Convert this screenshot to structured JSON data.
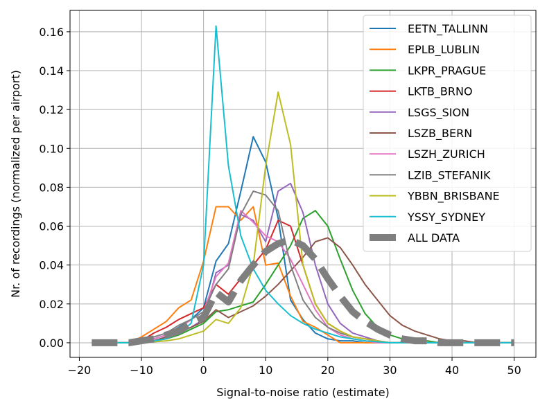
{
  "chart_data": {
    "type": "line",
    "title": "",
    "xlabel": "Signal-to-noise ratio (estimate)",
    "ylabel": "Nr. of recordings (normalized per airport)",
    "xlim": [
      -21.5,
      53.5
    ],
    "ylim": [
      -0.0075,
      0.171
    ],
    "xticks": [
      -20,
      -10,
      0,
      10,
      20,
      30,
      40,
      50
    ],
    "xtick_labels": [
      "−20",
      "−10",
      "0",
      "10",
      "20",
      "30",
      "40",
      "50"
    ],
    "yticks": [
      0.0,
      0.02,
      0.04,
      0.06,
      0.08,
      0.1,
      0.12,
      0.14,
      0.16
    ],
    "ytick_labels": [
      "0.00",
      "0.02",
      "0.04",
      "0.06",
      "0.08",
      "0.10",
      "0.12",
      "0.14",
      "0.16"
    ],
    "grid": true,
    "legend_position": "top-right",
    "series": [
      {
        "name": "EETN_TALLINN",
        "color": "#1f77b4",
        "x": [
          -18,
          -16,
          -14,
          -12,
          -10,
          -8,
          -6,
          -4,
          -2,
          0,
          2,
          4,
          6,
          8,
          10,
          12,
          14,
          16,
          18,
          20,
          22,
          24,
          26,
          28,
          30,
          32,
          34,
          36,
          38,
          40,
          42,
          44,
          46,
          48,
          50
        ],
        "y": [
          0,
          0,
          0,
          0,
          0,
          0.002,
          0.004,
          0.008,
          0.012,
          0.018,
          0.042,
          0.051,
          0.078,
          0.106,
          0.093,
          0.064,
          0.022,
          0.012,
          0.005,
          0.002,
          0.001,
          0.001,
          0,
          0,
          0,
          0,
          0,
          0,
          0,
          0,
          0,
          0,
          0,
          0,
          0
        ]
      },
      {
        "name": "EPLB_LUBLIN",
        "color": "#ff7f0e",
        "x": [
          -18,
          -16,
          -14,
          -12,
          -10,
          -8,
          -6,
          -4,
          -2,
          0,
          2,
          4,
          6,
          8,
          10,
          12,
          14,
          16,
          18,
          20,
          22,
          24,
          26,
          28,
          30,
          32,
          34,
          36,
          38,
          40,
          42,
          44,
          46,
          48,
          50
        ],
        "y": [
          0,
          0,
          0,
          0,
          0.003,
          0.007,
          0.011,
          0.018,
          0.022,
          0.042,
          0.07,
          0.07,
          0.063,
          0.07,
          0.04,
          0.041,
          0.024,
          0.011,
          0.008,
          0.004,
          0,
          0,
          0,
          0,
          0,
          0,
          0,
          0,
          0,
          0,
          0,
          0,
          0,
          0,
          0
        ]
      },
      {
        "name": "LKPR_PRAGUE",
        "color": "#2ca02c",
        "x": [
          -18,
          -16,
          -14,
          -12,
          -10,
          -8,
          -6,
          -4,
          -2,
          0,
          2,
          4,
          6,
          8,
          10,
          12,
          14,
          16,
          18,
          20,
          22,
          24,
          26,
          28,
          30,
          32,
          34,
          36,
          38,
          40,
          42,
          44,
          46,
          48,
          50
        ],
        "y": [
          0,
          0,
          0,
          0,
          0,
          0.001,
          0.002,
          0.004,
          0.007,
          0.01,
          0.016,
          0.017,
          0.019,
          0.021,
          0.03,
          0.04,
          0.05,
          0.064,
          0.068,
          0.06,
          0.043,
          0.027,
          0.015,
          0.008,
          0.004,
          0.002,
          0.001,
          0.001,
          0,
          0,
          0,
          0,
          0,
          0,
          0
        ]
      },
      {
        "name": "LKTB_BRNO",
        "color": "#d62728",
        "x": [
          -18,
          -16,
          -14,
          -12,
          -10,
          -8,
          -6,
          -4,
          -2,
          0,
          2,
          4,
          6,
          8,
          10,
          12,
          14,
          16,
          18,
          20,
          22,
          24,
          26,
          28,
          30,
          32,
          34,
          36,
          38,
          40,
          42,
          44,
          46,
          48,
          50
        ],
        "y": [
          0,
          0,
          0,
          0,
          0.001,
          0.005,
          0.008,
          0.012,
          0.015,
          0.018,
          0.03,
          0.025,
          0.033,
          0.04,
          0.048,
          0.063,
          0.06,
          0.04,
          0.02,
          0.01,
          0.006,
          0.003,
          0.002,
          0.001,
          0,
          0,
          0,
          0,
          0,
          0,
          0,
          0,
          0,
          0,
          0
        ]
      },
      {
        "name": "LSGS_SION",
        "color": "#9467bd",
        "x": [
          -18,
          -16,
          -14,
          -12,
          -10,
          -8,
          -6,
          -4,
          -2,
          0,
          2,
          4,
          6,
          8,
          10,
          12,
          14,
          16,
          18,
          20,
          22,
          24,
          26,
          28,
          30,
          32,
          34,
          36,
          38,
          40,
          42,
          44,
          46,
          48,
          50
        ],
        "y": [
          0,
          0,
          0,
          0,
          0,
          0.001,
          0.003,
          0.005,
          0.008,
          0.012,
          0.036,
          0.04,
          0.066,
          0.063,
          0.052,
          0.078,
          0.082,
          0.067,
          0.04,
          0.02,
          0.01,
          0.005,
          0.003,
          0.001,
          0,
          0,
          0,
          0,
          0,
          0,
          0,
          0,
          0,
          0,
          0
        ]
      },
      {
        "name": "LSZB_BERN",
        "color": "#8c564b",
        "x": [
          -18,
          -16,
          -14,
          -12,
          -10,
          -8,
          -6,
          -4,
          -2,
          0,
          2,
          4,
          6,
          8,
          10,
          12,
          14,
          16,
          18,
          20,
          22,
          24,
          26,
          28,
          30,
          32,
          34,
          36,
          38,
          40,
          42,
          44,
          46,
          48,
          50
        ],
        "y": [
          0,
          0,
          0,
          0,
          0,
          0.001,
          0.003,
          0.005,
          0.008,
          0.011,
          0.017,
          0.013,
          0.016,
          0.019,
          0.024,
          0.03,
          0.037,
          0.044,
          0.052,
          0.054,
          0.049,
          0.04,
          0.03,
          0.022,
          0.014,
          0.009,
          0.006,
          0.004,
          0.002,
          0.001,
          0.001,
          0,
          0,
          0,
          0
        ]
      },
      {
        "name": "LSZH_ZURICH",
        "color": "#e377c2",
        "x": [
          -18,
          -16,
          -14,
          -12,
          -10,
          -8,
          -6,
          -4,
          -2,
          0,
          2,
          4,
          6,
          8,
          10,
          12,
          14,
          16,
          18,
          20,
          22,
          24,
          26,
          28,
          30,
          32,
          34,
          36,
          38,
          40,
          42,
          44,
          46,
          48,
          50
        ],
        "y": [
          0,
          0,
          0,
          0,
          0,
          0.002,
          0.004,
          0.007,
          0.012,
          0.016,
          0.034,
          0.041,
          0.068,
          0.062,
          0.055,
          0.052,
          0.043,
          0.03,
          0.017,
          0.008,
          0.004,
          0.002,
          0.001,
          0,
          0,
          0,
          0,
          0,
          0,
          0,
          0,
          0,
          0,
          0,
          0
        ]
      },
      {
        "name": "LZIB_STEFANIK",
        "color": "#7f7f7f",
        "x": [
          -18,
          -16,
          -14,
          -12,
          -10,
          -8,
          -6,
          -4,
          -2,
          0,
          2,
          4,
          6,
          8,
          10,
          12,
          14,
          16,
          18,
          20,
          22,
          24,
          26,
          28,
          30,
          32,
          34,
          36,
          38,
          40,
          42,
          44,
          46,
          48,
          50
        ],
        "y": [
          0,
          0,
          0,
          0,
          0.001,
          0.003,
          0.005,
          0.009,
          0.012,
          0.016,
          0.03,
          0.038,
          0.066,
          0.078,
          0.076,
          0.068,
          0.04,
          0.022,
          0.013,
          0.008,
          0.005,
          0.003,
          0.002,
          0.001,
          0,
          0,
          0,
          0,
          0,
          0,
          0,
          0,
          0,
          0,
          0
        ]
      },
      {
        "name": "YBBN_BRISBANE",
        "color": "#bcbd22",
        "x": [
          -18,
          -16,
          -14,
          -12,
          -10,
          -8,
          -6,
          -4,
          -2,
          0,
          2,
          4,
          6,
          8,
          10,
          12,
          14,
          16,
          18,
          20,
          22,
          24,
          26,
          28,
          30,
          32,
          34,
          36,
          38,
          40,
          42,
          44,
          46,
          48,
          50
        ],
        "y": [
          0,
          0,
          0,
          0,
          0,
          0.0005,
          0.001,
          0.002,
          0.004,
          0.006,
          0.012,
          0.01,
          0.018,
          0.04,
          0.091,
          0.129,
          0.102,
          0.04,
          0.02,
          0.01,
          0.006,
          0.003,
          0.002,
          0.001,
          0,
          0,
          0,
          0,
          0,
          0,
          0,
          0,
          0,
          0,
          0
        ]
      },
      {
        "name": "YSSY_SYDNEY",
        "color": "#17becf",
        "x": [
          -18,
          -16,
          -14,
          -12,
          -10,
          -8,
          -6,
          -4,
          -2,
          0,
          2,
          4,
          6,
          8,
          10,
          12,
          14,
          16,
          18,
          20,
          22,
          24,
          26,
          28,
          30,
          32,
          34,
          36,
          38,
          40,
          42,
          44,
          46,
          48,
          50
        ],
        "y": [
          0,
          0,
          0,
          0,
          0,
          0.001,
          0.002,
          0.005,
          0.01,
          0.04,
          0.163,
          0.091,
          0.055,
          0.038,
          0.027,
          0.02,
          0.014,
          0.01,
          0.007,
          0.005,
          0.003,
          0.002,
          0.001,
          0.0005,
          0,
          0,
          0,
          0,
          0,
          0,
          0,
          0,
          0,
          0,
          0
        ]
      },
      {
        "name": "ALL DATA",
        "color": "#7f7f7f",
        "dashed": true,
        "linewidth": 10,
        "x": [
          -18,
          -16,
          -14,
          -12,
          -10,
          -8,
          -6,
          -4,
          -2,
          0,
          2,
          4,
          6,
          8,
          10,
          12,
          14,
          16,
          18,
          20,
          22,
          24,
          26,
          28,
          30,
          32,
          34,
          36,
          38,
          40,
          42,
          44,
          46,
          48,
          50
        ],
        "y": [
          0,
          0,
          0,
          0,
          0.001,
          0.002,
          0.004,
          0.006,
          0.01,
          0.013,
          0.026,
          0.021,
          0.032,
          0.04,
          0.047,
          0.051,
          0.053,
          0.05,
          0.043,
          0.033,
          0.024,
          0.016,
          0.011,
          0.007,
          0.004,
          0.002,
          0.001,
          0.001,
          0,
          0,
          0,
          0,
          0,
          0,
          0
        ]
      }
    ]
  }
}
